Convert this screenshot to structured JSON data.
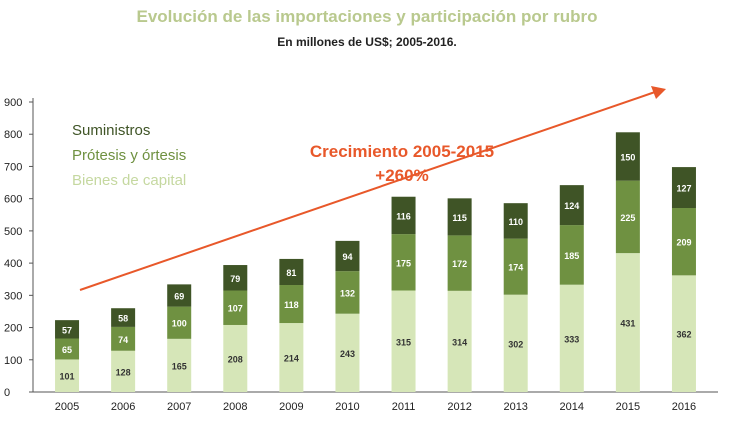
{
  "chart_data": {
    "type": "bar",
    "stacked": true,
    "title": "Evolución de las importaciones y participación por rubro",
    "subtitle": "En millones de US$; 2005-2016.",
    "categories": [
      "2005",
      "2006",
      "2007",
      "2008",
      "2009",
      "2010",
      "2011",
      "2012",
      "2013",
      "2014",
      "2015",
      "2016"
    ],
    "series": [
      {
        "name": "Bienes de capital",
        "color": "#d6e6b8",
        "values": [
          101,
          128,
          165,
          208,
          214,
          243,
          315,
          314,
          302,
          333,
          431,
          362
        ]
      },
      {
        "name": "Prótesis y órtesis",
        "color": "#6f9141",
        "values": [
          65,
          74,
          100,
          107,
          118,
          132,
          175,
          172,
          174,
          185,
          225,
          209
        ]
      },
      {
        "name": "Suministros",
        "color": "#3f5426",
        "values": [
          57,
          58,
          69,
          79,
          81,
          94,
          116,
          115,
          110,
          124,
          150,
          127
        ]
      }
    ],
    "ylim": [
      0,
      900
    ],
    "yticks": [
      0,
      100,
      200,
      300,
      400,
      500,
      600,
      700,
      800,
      900
    ],
    "grid": false,
    "legend": "top-left",
    "annotation": {
      "line1": "Crecimiento 2005-2015",
      "line2": "+260%",
      "color": "#e8582a"
    }
  }
}
